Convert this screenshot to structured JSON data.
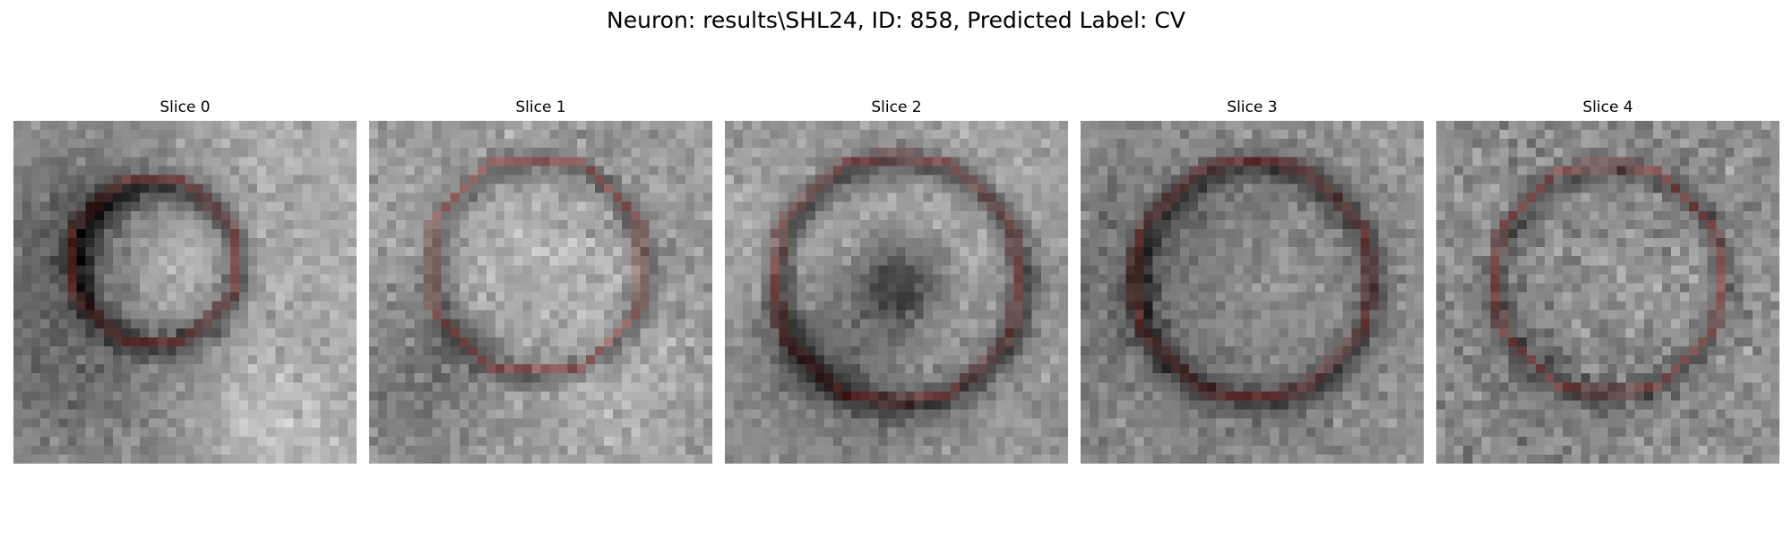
{
  "figure": {
    "title": "Neuron: results\\SHL24, ID: 858, Predicted Label: CV"
  },
  "panels": [
    {
      "title": "Slice 0",
      "seed": 11,
      "features": "ring-small"
    },
    {
      "title": "Slice 1",
      "seed": 23,
      "features": "ring-mid"
    },
    {
      "title": "Slice 2",
      "seed": 37,
      "features": "ring-dark-center"
    },
    {
      "title": "Slice 3",
      "seed": 53,
      "features": "bright-fill"
    },
    {
      "title": "Slice 4",
      "seed": 71,
      "features": "noisy-fill"
    }
  ],
  "style": {
    "contour_color": "#ee1111",
    "colormap": "gray"
  }
}
